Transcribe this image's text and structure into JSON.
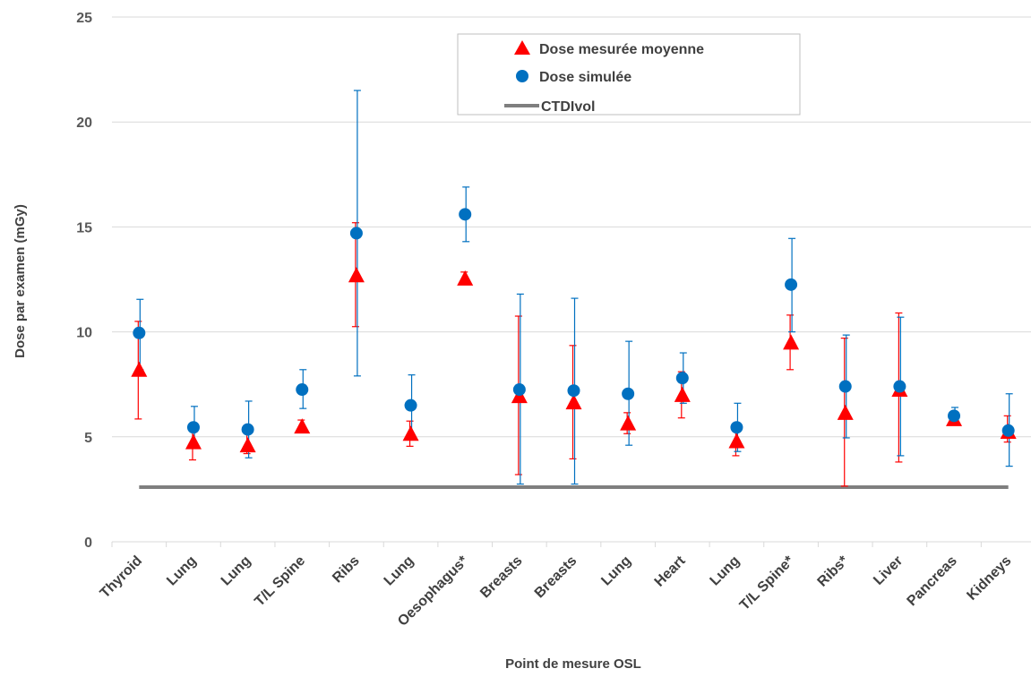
{
  "chart_data": {
    "type": "scatter",
    "xlabel": "Point de mesure OSL",
    "ylabel": "Dose par examen (mGy)",
    "ylim": [
      0,
      25
    ],
    "yticks": [
      "0",
      "5",
      "10",
      "15",
      "20",
      "25"
    ],
    "grid": "horizontal",
    "legend_position": "top-center",
    "categories": [
      "Thyroid",
      "Lung",
      "Lung",
      "T/L Spine",
      "Ribs",
      "Lung",
      "Oesophagus*",
      "Breasts",
      "Breasts",
      "Lung",
      "Heart",
      "Lung",
      "T/L Spine*",
      "Ribs*",
      "Liver",
      "Pancreas",
      "Kidneys"
    ],
    "series": [
      {
        "name": "Dose mesurée moyenne",
        "marker": "triangle",
        "color": "#ff0000",
        "values": [
          8.2,
          4.75,
          4.6,
          5.5,
          12.7,
          5.15,
          12.55,
          6.95,
          6.65,
          5.65,
          7.0,
          4.8,
          9.5,
          6.15,
          7.25,
          5.85,
          5.25
        ],
        "err_upper": [
          10.5,
          5.5,
          5.2,
          5.8,
          15.2,
          5.75,
          12.85,
          10.75,
          9.35,
          6.15,
          8.1,
          5.5,
          10.8,
          9.7,
          10.9,
          6.05,
          6.0
        ],
        "err_lower": [
          5.85,
          3.9,
          4.2,
          5.3,
          10.25,
          4.55,
          12.25,
          3.2,
          3.95,
          5.15,
          5.9,
          4.1,
          8.2,
          2.65,
          3.8,
          5.7,
          4.75
        ]
      },
      {
        "name": "Dose simulée",
        "marker": "circle",
        "color": "#0070c0",
        "values": [
          9.95,
          5.45,
          5.35,
          7.25,
          14.7,
          6.5,
          15.6,
          7.25,
          7.2,
          7.05,
          7.8,
          5.45,
          12.25,
          7.4,
          7.4,
          6.0,
          5.3
        ],
        "err_upper": [
          11.55,
          6.45,
          6.7,
          8.2,
          21.5,
          7.95,
          16.9,
          11.8,
          11.6,
          9.55,
          9.0,
          6.6,
          14.45,
          9.85,
          10.7,
          6.4,
          7.05
        ],
        "err_lower": [
          8.2,
          4.5,
          4.0,
          6.35,
          7.9,
          5.05,
          14.3,
          2.75,
          2.75,
          4.6,
          6.6,
          4.3,
          10.0,
          4.95,
          4.1,
          5.65,
          3.6
        ]
      }
    ],
    "reference_line": {
      "name": "CTDIvol",
      "value": 2.6,
      "color": "#7f7f7f"
    }
  }
}
